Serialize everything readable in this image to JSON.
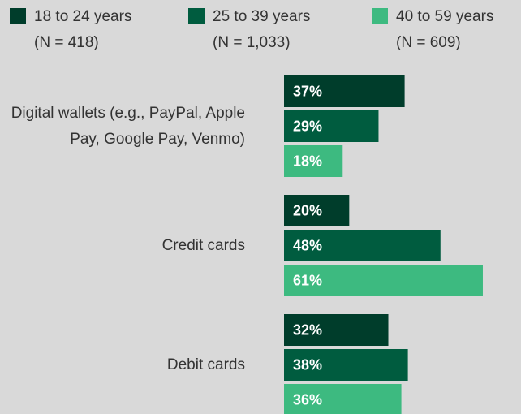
{
  "chart_data": {
    "type": "bar",
    "orientation": "horizontal",
    "categories": [
      "Digital wallets (e.g., PayPal, Apple Pay, Google Pay, Venmo)",
      "Credit cards",
      "Debit cards"
    ],
    "series": [
      {
        "name": "18 to 24 years",
        "sample": "(N = 418)",
        "color": "#003d2b",
        "values": [
          37,
          20,
          32
        ],
        "value_labels": [
          "37%",
          "20%",
          "32%"
        ]
      },
      {
        "name": "25 to 39 years",
        "sample": "(N = 1,033)",
        "color": "#005c3f",
        "values": [
          29,
          48,
          38
        ],
        "value_labels": [
          "29%",
          "48%",
          "38%"
        ]
      },
      {
        "name": "40 to 59 years",
        "sample": "(N = 609)",
        "color": "#3dba80",
        "values": [
          18,
          61,
          36
        ],
        "value_labels": [
          "18%",
          "61%",
          "36%"
        ]
      }
    ]
  }
}
